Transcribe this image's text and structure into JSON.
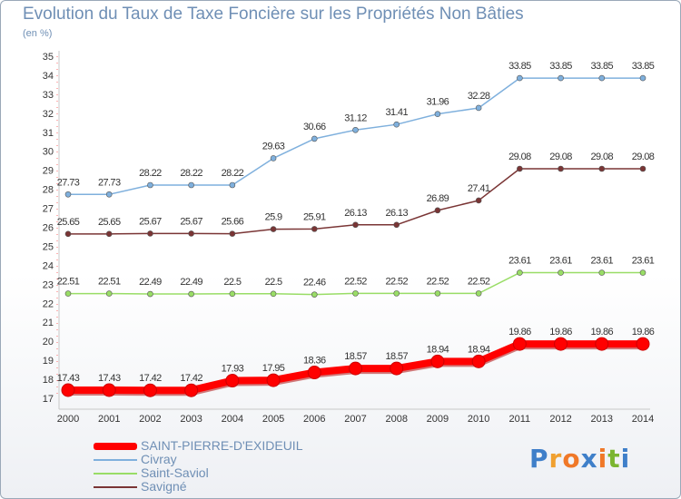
{
  "header": {
    "title": "Evolution du Taux de Taxe Foncière sur les Propriétés Non Bâties",
    "unit": "(en %)"
  },
  "logo": {
    "text": "Proxiti",
    "letters": [
      "P",
      "r",
      "o",
      "x",
      "i",
      "t",
      "i"
    ],
    "colors": [
      "#3f7fc9",
      "#f0a030",
      "#f07828",
      "#3f7fc9",
      "#f07828",
      "#7bb530",
      "#3f7fc9"
    ]
  },
  "chart_data": {
    "type": "line",
    "x": [
      "2000",
      "2001",
      "2002",
      "2003",
      "2004",
      "2005",
      "2006",
      "2007",
      "2008",
      "2009",
      "2010",
      "2011",
      "2012",
      "2013",
      "2014"
    ],
    "ylim": [
      17,
      35
    ],
    "yticks": [
      17,
      18,
      19,
      20,
      21,
      22,
      23,
      24,
      25,
      26,
      27,
      28,
      29,
      30,
      31,
      32,
      33,
      34,
      35
    ],
    "grid": false,
    "legend_position": "bottom-left",
    "series": [
      {
        "name": "SAINT-PIERRE-D'EXIDEUIL",
        "color": "#ff0000",
        "values": [
          17.43,
          17.43,
          17.42,
          17.42,
          17.93,
          17.95,
          18.36,
          18.57,
          18.57,
          18.94,
          18.94,
          19.86,
          19.86,
          19.86,
          19.86
        ],
        "labels": [
          "17.43",
          "17.43",
          "17.42",
          "17.42",
          "17.93",
          "17.95",
          "18.36",
          "18.57",
          "18.57",
          "18.94",
          "18.94",
          "19.86",
          "19.86",
          "19.86",
          "19.86"
        ]
      },
      {
        "name": "Civray",
        "color": "#7fb0dd",
        "values": [
          27.73,
          27.73,
          28.22,
          28.22,
          28.22,
          29.63,
          30.66,
          31.12,
          31.41,
          31.96,
          32.28,
          33.85,
          33.85,
          33.85,
          33.85
        ],
        "labels": [
          "27.73",
          "27.73",
          "28.22",
          "28.22",
          "28.22",
          "29.63",
          "30.66",
          "31.12",
          "31.41",
          "31.96",
          "32.28",
          "33.85",
          "33.85",
          "33.85",
          "33.85"
        ]
      },
      {
        "name": "Saint-Saviol",
        "color": "#99dd66",
        "values": [
          22.51,
          22.51,
          22.49,
          22.49,
          22.5,
          22.5,
          22.46,
          22.52,
          22.52,
          22.52,
          22.52,
          23.61,
          23.61,
          23.61,
          23.61
        ],
        "labels": [
          "22.51",
          "22.51",
          "22.49",
          "22.49",
          "22.5",
          "22.5",
          "22.46",
          "22.52",
          "22.52",
          "22.52",
          "22.52",
          "23.61",
          "23.61",
          "23.61",
          "23.61"
        ]
      },
      {
        "name": "Savigné",
        "color": "#7a3535",
        "values": [
          25.65,
          25.65,
          25.67,
          25.67,
          25.66,
          25.9,
          25.91,
          26.13,
          26.13,
          26.89,
          27.41,
          29.08,
          29.08,
          29.08,
          29.08
        ],
        "labels": [
          "25.65",
          "25.65",
          "25.67",
          "25.67",
          "25.66",
          "25.9",
          "25.91",
          "26.13",
          "26.13",
          "26.89",
          "27.41",
          "29.08",
          "29.08",
          "29.08",
          "29.08"
        ]
      }
    ]
  }
}
